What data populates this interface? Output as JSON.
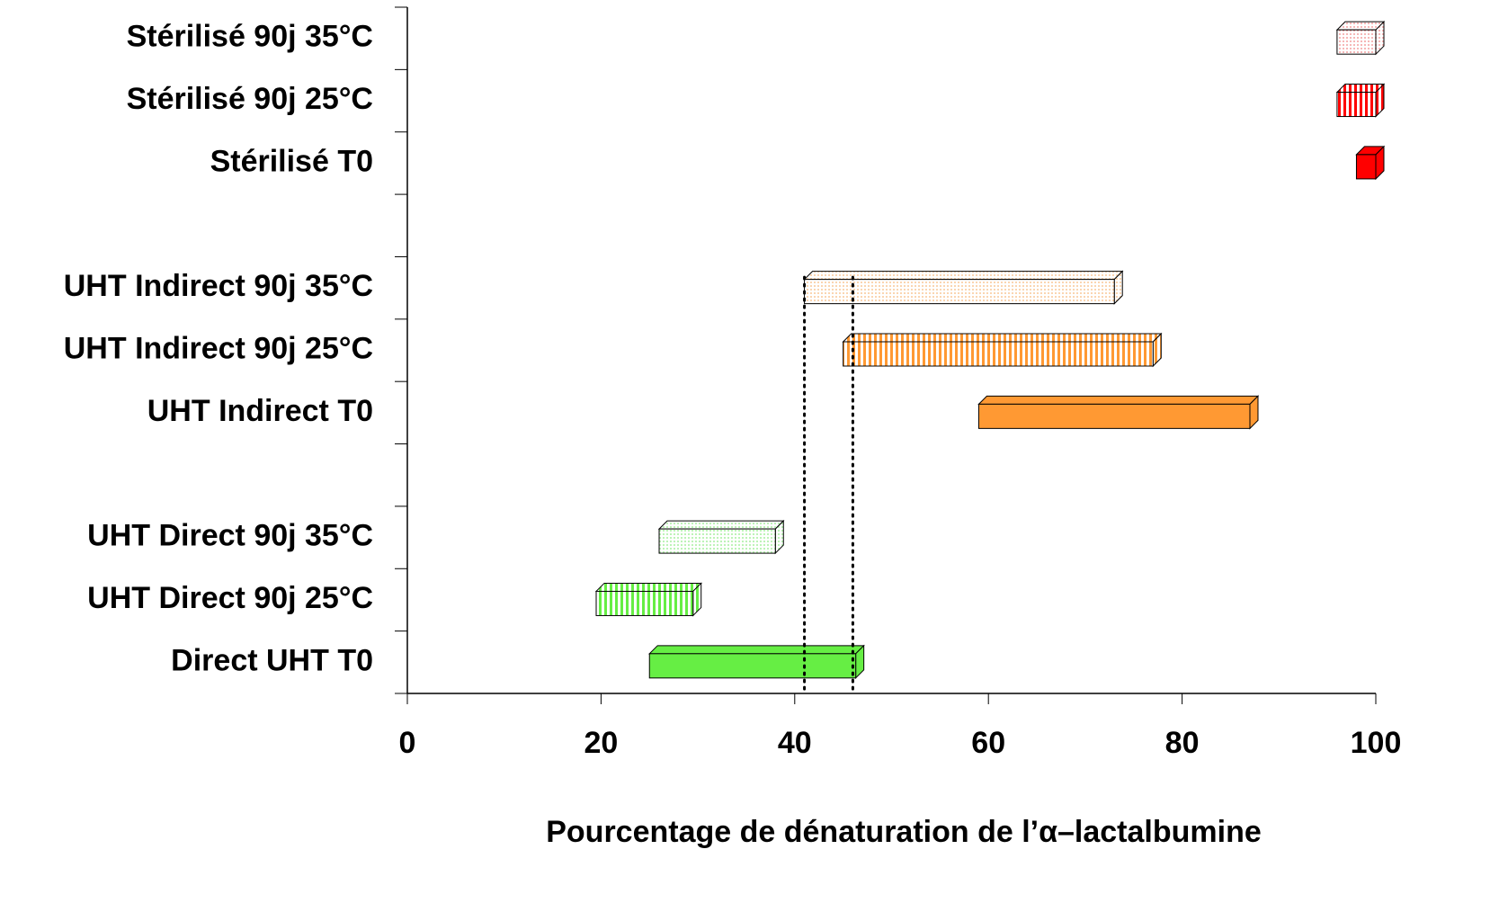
{
  "chart_data": {
    "type": "range-bar",
    "x_label": "Pourcentage de dénaturation de l’α–lactalbumine",
    "categories": [
      "Stérilisé 90j 35°C",
      "Stérilisé 90j 25°C",
      "Stérilisé T0",
      null,
      "UHT Indirect 90j 35°C",
      "UHT Indirect 90j 25°C",
      "UHT Indirect T0",
      null,
      "UHT Direct 90j 35°C",
      "UHT Direct 90j 25°C",
      "Direct UHT T0"
    ],
    "starts": [
      96,
      96,
      98,
      null,
      41,
      45,
      59,
      null,
      26,
      19.5,
      25
    ],
    "ends": [
      100,
      100,
      100,
      null,
      73,
      77,
      87,
      null,
      38,
      29.5,
      46.3
    ],
    "colors": [
      "#f4a0a0",
      "#ff0000",
      "#ff0000",
      null,
      "#f8c898",
      "#ff9933",
      "#ff9933",
      null,
      "#a8f0a0",
      "#66ee44",
      "#66ee44"
    ],
    "patterns": [
      "dots",
      "stripes",
      "solid",
      null,
      "dots",
      "stripes",
      "solid",
      null,
      "dots",
      "stripes",
      "solid"
    ],
    "reference_lines": [
      41,
      46
    ],
    "xlim": [
      0,
      100
    ],
    "xticks": [
      0,
      20,
      40,
      60,
      80,
      100
    ]
  }
}
